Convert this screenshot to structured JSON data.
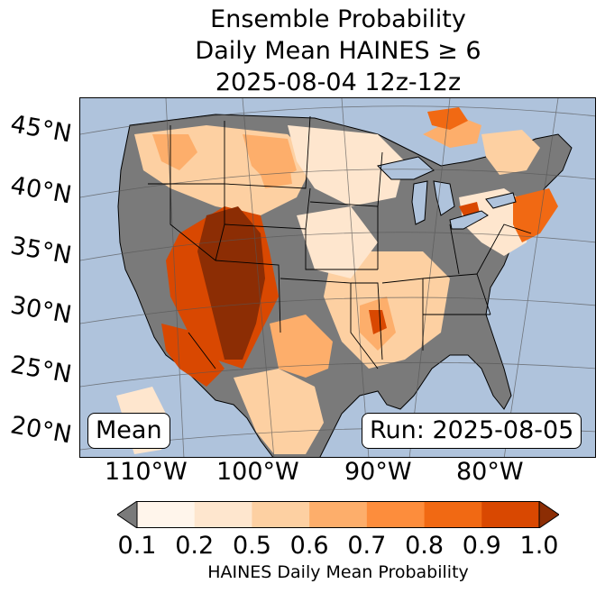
{
  "title": {
    "line1": "Ensemble Probability",
    "line2": "Daily Mean HAINES ≥ 6",
    "line3": "2025-08-04 12z-12z"
  },
  "map": {
    "latitude_labels": [
      "45°N",
      "40°N",
      "35°N",
      "30°N",
      "25°N",
      "20°N"
    ],
    "longitude_labels": [
      "110°W",
      "100°W",
      "90°W",
      "80°W"
    ],
    "left_box": "Mean",
    "right_box": "Run: 2025-08-05",
    "colors": {
      "ocean": "#afc3dc",
      "land_low": "#7a7a7a",
      "lakes": "#afc3dc"
    }
  },
  "colorbar": {
    "tick_labels": [
      "0.1",
      "0.2",
      "0.5",
      "0.6",
      "0.7",
      "0.8",
      "0.9",
      "1.0"
    ],
    "under_color": "#7a7a7a",
    "colors": [
      "#fff5eb",
      "#fee6ce",
      "#fdd0a2",
      "#fdae6b",
      "#fd8d3c",
      "#f16913",
      "#d94801",
      "#8c2d04"
    ],
    "label": "HAINES Daily Mean Probability"
  }
}
